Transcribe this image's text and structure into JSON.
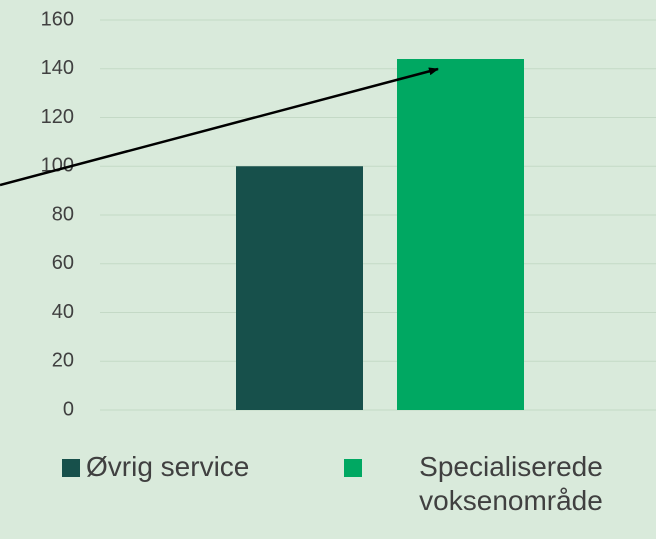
{
  "chart_data": {
    "type": "bar",
    "categories": [
      null
    ],
    "series": [
      {
        "name": "Øvrig service",
        "color": "#17504b",
        "values": [
          100
        ]
      },
      {
        "name": "Specialiserede voksenområde",
        "color": "#00a862",
        "values": [
          144
        ]
      }
    ],
    "ylim": [
      0,
      160
    ],
    "yticks": [
      0,
      20,
      40,
      60,
      80,
      100,
      120,
      140,
      160
    ],
    "grid": true,
    "legend": "bottom"
  }
}
